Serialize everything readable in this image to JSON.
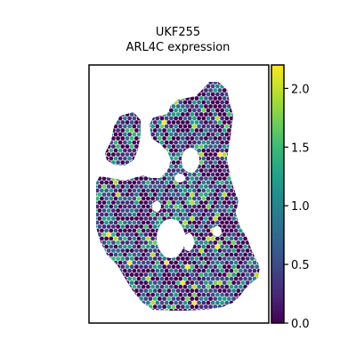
{
  "chart_data": {
    "type": "scatter",
    "title_lines": [
      "UKF255",
      "ARL4C expression"
    ],
    "xlabel": "",
    "ylabel": "",
    "grid": false,
    "colormap": "viridis",
    "colorbar": {
      "min": 0.0,
      "max": 2.2,
      "ticks": [
        0.0,
        0.5,
        1.0,
        1.5,
        2.0
      ],
      "tick_labels": [
        "0.0",
        "0.5",
        "1.0",
        "1.5",
        "2.0"
      ]
    },
    "colors": {
      "viridis": [
        "#440154",
        "#482878",
        "#3e4a89",
        "#31688e",
        "#26828e",
        "#1f9e89",
        "#35b779",
        "#6ece58",
        "#b5de2b",
        "#fde725"
      ],
      "frame": "#000000",
      "background": "#ffffff"
    }
  }
}
